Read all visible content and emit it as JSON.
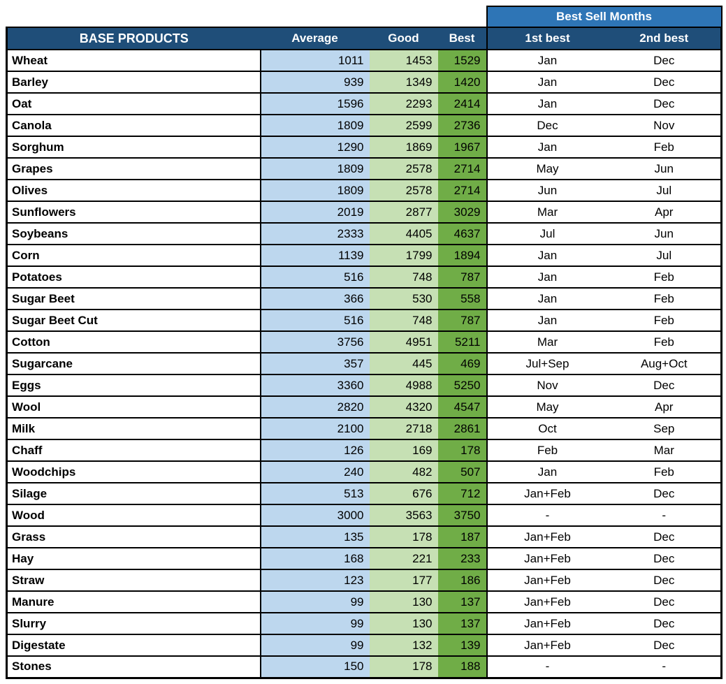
{
  "table": {
    "months_header": "Best Sell Months",
    "columns": {
      "products": "BASE PRODUCTS",
      "average": "Average",
      "good": "Good",
      "best": "Best",
      "first_best": "1st best",
      "second_best": "2nd best"
    },
    "colors": {
      "header_navy": "#1F4E79",
      "months_blue": "#2E75B6",
      "average_bg": "#BDD7EE",
      "good_bg": "#C6E0B4",
      "best_bg": "#70AD47",
      "header_text": "#FFFFFF",
      "border": "#000000"
    },
    "rows": [
      {
        "product": "Wheat",
        "average": "1011",
        "good": "1453",
        "best": "1529",
        "first": "Jan",
        "second": "Dec"
      },
      {
        "product": "Barley",
        "average": "939",
        "good": "1349",
        "best": "1420",
        "first": "Jan",
        "second": "Dec"
      },
      {
        "product": "Oat",
        "average": "1596",
        "good": "2293",
        "best": "2414",
        "first": "Jan",
        "second": "Dec"
      },
      {
        "product": "Canola",
        "average": "1809",
        "good": "2599",
        "best": "2736",
        "first": "Dec",
        "second": "Nov"
      },
      {
        "product": "Sorghum",
        "average": "1290",
        "good": "1869",
        "best": "1967",
        "first": "Jan",
        "second": "Feb"
      },
      {
        "product": "Grapes",
        "average": "1809",
        "good": "2578",
        "best": "2714",
        "first": "May",
        "second": "Jun"
      },
      {
        "product": "Olives",
        "average": "1809",
        "good": "2578",
        "best": "2714",
        "first": "Jun",
        "second": "Jul"
      },
      {
        "product": "Sunflowers",
        "average": "2019",
        "good": "2877",
        "best": "3029",
        "first": "Mar",
        "second": "Apr"
      },
      {
        "product": "Soybeans",
        "average": "2333",
        "good": "4405",
        "best": "4637",
        "first": "Jul",
        "second": "Jun"
      },
      {
        "product": "Corn",
        "average": "1139",
        "good": "1799",
        "best": "1894",
        "first": "Jan",
        "second": "Jul"
      },
      {
        "product": "Potatoes",
        "average": "516",
        "good": "748",
        "best": "787",
        "first": "Jan",
        "second": "Feb"
      },
      {
        "product": "Sugar Beet",
        "average": "366",
        "good": "530",
        "best": "558",
        "first": "Jan",
        "second": "Feb"
      },
      {
        "product": "Sugar Beet Cut",
        "average": "516",
        "good": "748",
        "best": "787",
        "first": "Jan",
        "second": "Feb"
      },
      {
        "product": "Cotton",
        "average": "3756",
        "good": "4951",
        "best": "5211",
        "first": "Mar",
        "second": "Feb"
      },
      {
        "product": "Sugarcane",
        "average": "357",
        "good": "445",
        "best": "469",
        "first": "Jul+Sep",
        "second": "Aug+Oct"
      },
      {
        "product": "Eggs",
        "average": "3360",
        "good": "4988",
        "best": "5250",
        "first": "Nov",
        "second": "Dec"
      },
      {
        "product": "Wool",
        "average": "2820",
        "good": "4320",
        "best": "4547",
        "first": "May",
        "second": "Apr"
      },
      {
        "product": "Milk",
        "average": "2100",
        "good": "2718",
        "best": "2861",
        "first": "Oct",
        "second": "Sep"
      },
      {
        "product": "Chaff",
        "average": "126",
        "good": "169",
        "best": "178",
        "first": "Feb",
        "second": "Mar"
      },
      {
        "product": "Woodchips",
        "average": "240",
        "good": "482",
        "best": "507",
        "first": "Jan",
        "second": "Feb"
      },
      {
        "product": "Silage",
        "average": "513",
        "good": "676",
        "best": "712",
        "first": "Jan+Feb",
        "second": "Dec"
      },
      {
        "product": "Wood",
        "average": "3000",
        "good": "3563",
        "best": "3750",
        "first": "-",
        "second": "-"
      },
      {
        "product": "Grass",
        "average": "135",
        "good": "178",
        "best": "187",
        "first": "Jan+Feb",
        "second": "Dec"
      },
      {
        "product": "Hay",
        "average": "168",
        "good": "221",
        "best": "233",
        "first": "Jan+Feb",
        "second": "Dec"
      },
      {
        "product": "Straw",
        "average": "123",
        "good": "177",
        "best": "186",
        "first": "Jan+Feb",
        "second": "Dec"
      },
      {
        "product": "Manure",
        "average": "99",
        "good": "130",
        "best": "137",
        "first": "Jan+Feb",
        "second": "Dec"
      },
      {
        "product": "Slurry",
        "average": "99",
        "good": "130",
        "best": "137",
        "first": "Jan+Feb",
        "second": "Dec"
      },
      {
        "product": "Digestate",
        "average": "99",
        "good": "132",
        "best": "139",
        "first": "Jan+Feb",
        "second": "Dec"
      },
      {
        "product": "Stones",
        "average": "150",
        "good": "178",
        "best": "188",
        "first": "-",
        "second": "-"
      }
    ]
  },
  "chart_data": {
    "type": "table",
    "columns": [
      "BASE PRODUCTS",
      "Average",
      "Good",
      "Best",
      "1st best",
      "2nd best"
    ],
    "group_header": {
      "label": "Best Sell Months",
      "spans": [
        "1st best",
        "2nd best"
      ]
    },
    "rows": [
      [
        "Wheat",
        1011,
        1453,
        1529,
        "Jan",
        "Dec"
      ],
      [
        "Barley",
        939,
        1349,
        1420,
        "Jan",
        "Dec"
      ],
      [
        "Oat",
        1596,
        2293,
        2414,
        "Jan",
        "Dec"
      ],
      [
        "Canola",
        1809,
        2599,
        2736,
        "Dec",
        "Nov"
      ],
      [
        "Sorghum",
        1290,
        1869,
        1967,
        "Jan",
        "Feb"
      ],
      [
        "Grapes",
        1809,
        2578,
        2714,
        "May",
        "Jun"
      ],
      [
        "Olives",
        1809,
        2578,
        2714,
        "Jun",
        "Jul"
      ],
      [
        "Sunflowers",
        2019,
        2877,
        3029,
        "Mar",
        "Apr"
      ],
      [
        "Soybeans",
        2333,
        4405,
        4637,
        "Jul",
        "Jun"
      ],
      [
        "Corn",
        1139,
        1799,
        1894,
        "Jan",
        "Jul"
      ],
      [
        "Potatoes",
        516,
        748,
        787,
        "Jan",
        "Feb"
      ],
      [
        "Sugar Beet",
        366,
        530,
        558,
        "Jan",
        "Feb"
      ],
      [
        "Sugar Beet Cut",
        516,
        748,
        787,
        "Jan",
        "Feb"
      ],
      [
        "Cotton",
        3756,
        4951,
        5211,
        "Mar",
        "Feb"
      ],
      [
        "Sugarcane",
        357,
        445,
        469,
        "Jul+Sep",
        "Aug+Oct"
      ],
      [
        "Eggs",
        3360,
        4988,
        5250,
        "Nov",
        "Dec"
      ],
      [
        "Wool",
        2820,
        4320,
        4547,
        "May",
        "Apr"
      ],
      [
        "Milk",
        2100,
        2718,
        2861,
        "Oct",
        "Sep"
      ],
      [
        "Chaff",
        126,
        169,
        178,
        "Feb",
        "Mar"
      ],
      [
        "Woodchips",
        240,
        482,
        507,
        "Jan",
        "Feb"
      ],
      [
        "Silage",
        513,
        676,
        712,
        "Jan+Feb",
        "Dec"
      ],
      [
        "Wood",
        3000,
        3563,
        3750,
        "-",
        "-"
      ],
      [
        "Grass",
        135,
        178,
        187,
        "Jan+Feb",
        "Dec"
      ],
      [
        "Hay",
        168,
        221,
        233,
        "Jan+Feb",
        "Dec"
      ],
      [
        "Straw",
        123,
        177,
        186,
        "Jan+Feb",
        "Dec"
      ],
      [
        "Manure",
        99,
        130,
        137,
        "Jan+Feb",
        "Dec"
      ],
      [
        "Slurry",
        99,
        130,
        137,
        "Jan+Feb",
        "Dec"
      ],
      [
        "Digestate",
        99,
        132,
        139,
        "Jan+Feb",
        "Dec"
      ],
      [
        "Stones",
        150,
        178,
        188,
        "-",
        "-"
      ]
    ]
  }
}
